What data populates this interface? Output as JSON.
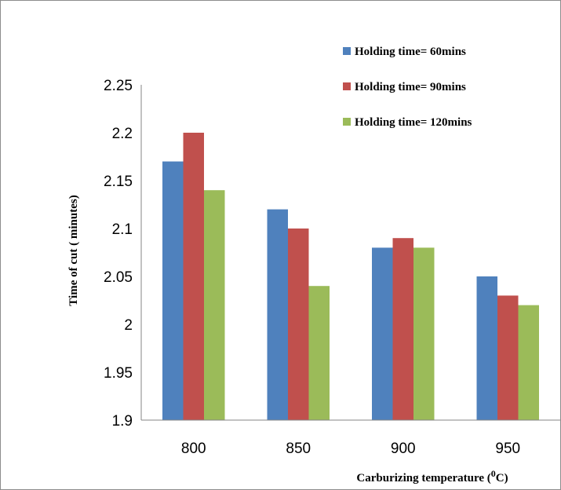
{
  "chart_data": {
    "type": "bar",
    "categories": [
      "800",
      "850",
      "900",
      "950"
    ],
    "series": [
      {
        "name": "Holding time= 60mins",
        "color": "#4f81bd",
        "values": [
          2.17,
          2.12,
          2.08,
          2.05
        ]
      },
      {
        "name": "Holding time= 90mins",
        "color": "#c0504d",
        "values": [
          2.2,
          2.1,
          2.09,
          2.03
        ]
      },
      {
        "name": "Holding time= 120mins",
        "color": "#9bbb59",
        "values": [
          2.14,
          2.04,
          2.08,
          2.02
        ]
      }
    ],
    "xlabel": {
      "text": "Carburizing temperature (",
      "sup": "0",
      "end": "C)"
    },
    "ylabel": "Time of cut ( minutes)",
    "ylim": [
      1.9,
      2.25
    ],
    "yticks": [
      "1.9",
      "1.95",
      "2",
      "2.05",
      "2.1",
      "2.15",
      "2.2",
      "2.25"
    ],
    "grid": false,
    "legend_position": "top-right"
  }
}
